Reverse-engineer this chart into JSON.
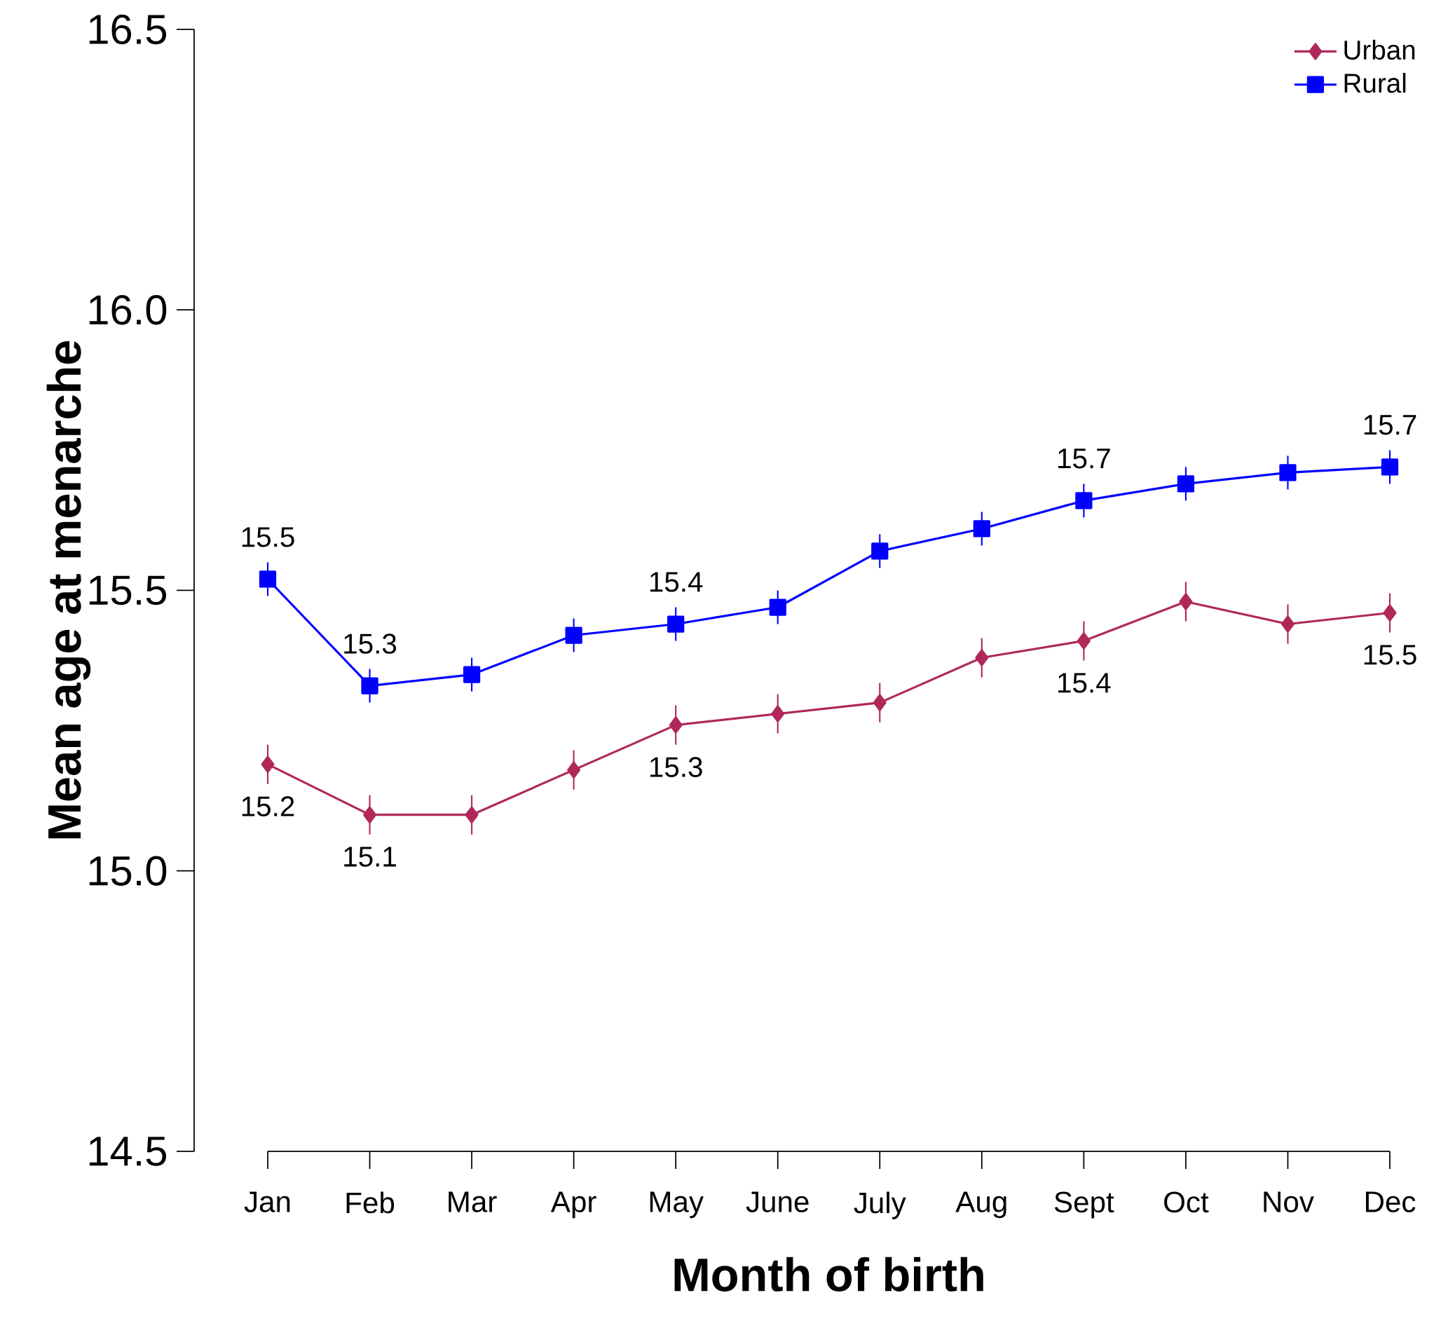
{
  "chart_data": {
    "type": "line",
    "xlabel": "Month of birth",
    "ylabel": "Mean age at menarche",
    "categories": [
      "Jan",
      "Feb",
      "Mar",
      "Apr",
      "May",
      "June",
      "July",
      "Aug",
      "Sept",
      "Oct",
      "Nov",
      "Dec"
    ],
    "series": [
      {
        "name": "Urban",
        "color": "#b0285a",
        "marker": "diamond",
        "values": [
          15.19,
          15.1,
          15.1,
          15.18,
          15.26,
          15.28,
          15.3,
          15.38,
          15.41,
          15.48,
          15.44,
          15.46
        ],
        "errors": [
          0.035,
          0.035,
          0.035,
          0.035,
          0.035,
          0.035,
          0.035,
          0.035,
          0.035,
          0.035,
          0.035,
          0.035
        ],
        "value_labels": [
          "15.2",
          "15.1",
          null,
          null,
          "15.3",
          null,
          null,
          null,
          "15.4",
          null,
          null,
          "15.5"
        ]
      },
      {
        "name": "Rural",
        "color": "#0000ff",
        "marker": "square",
        "values": [
          15.52,
          15.33,
          15.35,
          15.42,
          15.44,
          15.47,
          15.57,
          15.61,
          15.66,
          15.69,
          15.71,
          15.72
        ],
        "errors": [
          0.03,
          0.03,
          0.03,
          0.03,
          0.03,
          0.03,
          0.03,
          0.03,
          0.03,
          0.03,
          0.03,
          0.03
        ],
        "value_labels": [
          "15.5",
          "15.3",
          null,
          null,
          "15.4",
          null,
          null,
          null,
          "15.7",
          null,
          null,
          "15.7"
        ]
      }
    ],
    "ylim": [
      14.5,
      16.5
    ],
    "yticks": [
      14.5,
      {
        "value": 15,
        "label": "15.0"
      },
      15.5,
      {
        "value": 16,
        "label": "16.0"
      },
      16.5
    ],
    "line_style": "solid",
    "grid": false,
    "legend": "top right"
  }
}
